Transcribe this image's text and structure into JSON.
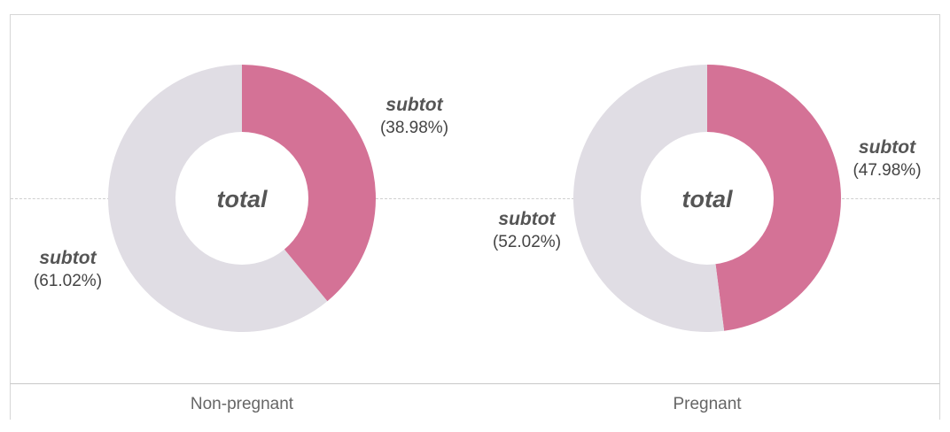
{
  "colors": {
    "highlight": "#d47296",
    "rest": "#e0dde4",
    "center": "#ffffff"
  },
  "chart_data": {
    "type": "pie",
    "variant": "donut",
    "panels": [
      {
        "category": "Non-pregnant",
        "center_label": "total",
        "slices": [
          {
            "label": "subtot",
            "percent_text": "(38.98%)",
            "value": 38.98,
            "color": "#d47296"
          },
          {
            "label": "subtot",
            "percent_text": "(61.02%)",
            "value": 61.02,
            "color": "#e0dde4"
          }
        ]
      },
      {
        "category": "Pregnant",
        "center_label": "total",
        "slices": [
          {
            "label": "subtot",
            "percent_text": "(47.98%)",
            "value": 47.98,
            "color": "#d47296"
          },
          {
            "label": "subtot",
            "percent_text": "(52.02%)",
            "value": 52.02,
            "color": "#e0dde4"
          }
        ]
      }
    ]
  }
}
